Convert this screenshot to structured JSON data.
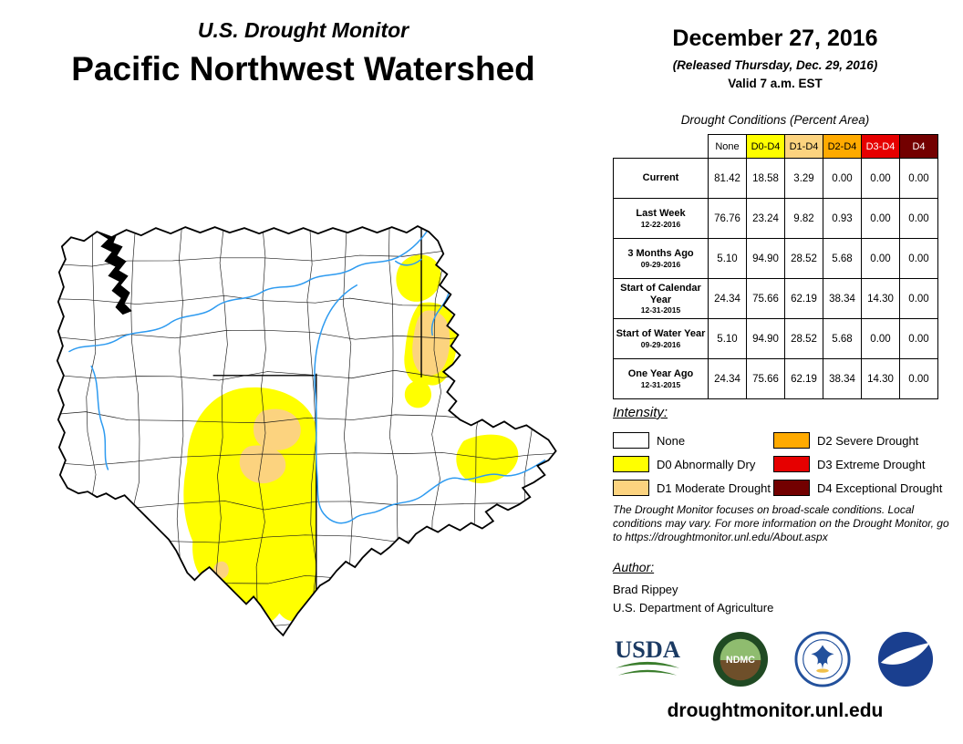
{
  "header": {
    "kicker": "U.S. Drought Monitor",
    "title": "Pacific Northwest Watershed"
  },
  "date_block": {
    "date": "December 27, 2016",
    "released": "(Released Thursday, Dec. 29, 2016)",
    "valid": "Valid 7 a.m. EST"
  },
  "table": {
    "caption": "Drought Conditions (Percent Area)",
    "columns": [
      {
        "label": "None",
        "bg": "#FFFFFF",
        "fg": "#000000"
      },
      {
        "label": "D0-D4",
        "bg": "#FFFF00",
        "fg": "#000000"
      },
      {
        "label": "D1-D4",
        "bg": "#FCD37F",
        "fg": "#000000"
      },
      {
        "label": "D2-D4",
        "bg": "#FFAA00",
        "fg": "#000000"
      },
      {
        "label": "D3-D4",
        "bg": "#E60000",
        "fg": "#FFFFFF"
      },
      {
        "label": "D4",
        "bg": "#730000",
        "fg": "#FFFFFF"
      }
    ],
    "rows": [
      {
        "label": "Current",
        "date": "",
        "values": [
          "81.42",
          "18.58",
          "3.29",
          "0.00",
          "0.00",
          "0.00"
        ]
      },
      {
        "label": "Last Week",
        "date": "12-22-2016",
        "values": [
          "76.76",
          "23.24",
          "9.82",
          "0.93",
          "0.00",
          "0.00"
        ]
      },
      {
        "label": "3 Months Ago",
        "date": "09-29-2016",
        "values": [
          "5.10",
          "94.90",
          "28.52",
          "5.68",
          "0.00",
          "0.00"
        ]
      },
      {
        "label": "Start of Calendar Year",
        "date": "12-31-2015",
        "values": [
          "24.34",
          "75.66",
          "62.19",
          "38.34",
          "14.30",
          "0.00"
        ]
      },
      {
        "label": "Start of Water Year",
        "date": "09-29-2016",
        "values": [
          "5.10",
          "94.90",
          "28.52",
          "5.68",
          "0.00",
          "0.00"
        ]
      },
      {
        "label": "One Year Ago",
        "date": "12-31-2015",
        "values": [
          "24.34",
          "75.66",
          "62.19",
          "38.34",
          "14.30",
          "0.00"
        ]
      }
    ]
  },
  "legend": {
    "title": "Intensity:",
    "items": [
      {
        "label": "None",
        "color": "#FFFFFF"
      },
      {
        "label": "D0 Abnormally Dry",
        "color": "#FFFF00"
      },
      {
        "label": "D1 Moderate Drought",
        "color": "#FCD37F"
      },
      {
        "label": "D2 Severe Drought",
        "color": "#FFAA00"
      },
      {
        "label": "D3 Extreme Drought",
        "color": "#E60000"
      },
      {
        "label": "D4 Exceptional Drought",
        "color": "#730000"
      }
    ]
  },
  "disclaimer": {
    "text": "The Drought Monitor focuses on broad-scale conditions. Local conditions may vary. For more information on the Drought Monitor, go to https://droughtmonitor.unl.edu/About.aspx"
  },
  "author": {
    "heading": "Author:",
    "name": "Brad Rippey",
    "org": "U.S. Department of Agriculture"
  },
  "logos": {
    "usda_label": "USDA",
    "ndmc_label": "NDMC"
  },
  "map": {
    "river_color": "#2E9BF0"
  },
  "footer": {
    "url": "droughtmonitor.unl.edu"
  }
}
